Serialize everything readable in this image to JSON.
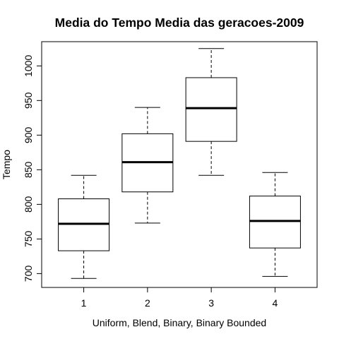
{
  "chart_data": {
    "type": "boxplot",
    "title": "Media do Tempo Media das geracoes-2009",
    "xlabel": "Uniform, Blend, Binary, Binary Bounded",
    "ylabel": "Tempo",
    "categories": [
      "1",
      "2",
      "3",
      "4"
    ],
    "y_ticks": [
      "700",
      "750",
      "800",
      "850",
      "900",
      "950",
      "1000"
    ],
    "ylim": [
      680,
      1035
    ],
    "grid": false,
    "boxes": [
      {
        "category": "1",
        "whisker_low": 693,
        "q1": 733,
        "median": 772,
        "q3": 808,
        "whisker_high": 842
      },
      {
        "category": "2",
        "whisker_low": 773,
        "q1": 818,
        "median": 861,
        "q3": 902,
        "whisker_high": 940
      },
      {
        "category": "3",
        "whisker_low": 842,
        "q1": 891,
        "median": 939,
        "q3": 983,
        "whisker_high": 1025
      },
      {
        "category": "4",
        "whisker_low": 696,
        "q1": 737,
        "median": 776,
        "q3": 812,
        "whisker_high": 846
      }
    ]
  }
}
